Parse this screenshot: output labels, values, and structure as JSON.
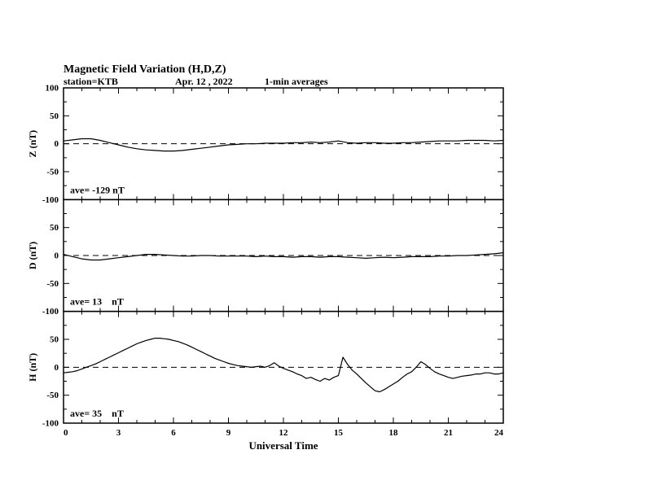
{
  "title": "Magnetic Field Variation (H,D,Z)",
  "subtitle": {
    "station": "station=KTB",
    "date": "Apr. 12 , 2022",
    "averages": "1-min averages"
  },
  "chart_data": {
    "type": "line",
    "title": "Magnetic Field Variation (H,D,Z)",
    "xlabel": "Universal Time",
    "xlim": [
      0,
      24
    ],
    "xticks": [
      0,
      3,
      6,
      9,
      12,
      15,
      18,
      21,
      24
    ],
    "x_minor_step": 1,
    "line_color": "#000000",
    "zero_line": {
      "value": 0,
      "style": "dashed"
    },
    "panels": [
      {
        "name": "Z",
        "ylabel": "Z (nT)",
        "ave_label": "ave= -129 nT",
        "ylim": [
          -100,
          100
        ],
        "yticks": [
          100,
          50,
          0,
          -50,
          -100
        ],
        "y_minor_step": 25,
        "x_start": 0,
        "x_step": 0.5,
        "values": [
          5,
          7,
          9,
          9,
          6,
          2,
          -2,
          -6,
          -9,
          -11,
          -12,
          -13,
          -13,
          -12,
          -10,
          -8,
          -6,
          -4,
          -2,
          -1,
          0,
          0,
          1,
          1,
          1,
          2,
          2,
          3,
          2,
          3,
          5,
          2,
          1,
          2,
          2,
          1,
          1,
          2,
          2,
          3,
          4,
          5,
          5,
          5,
          6,
          6,
          6,
          5,
          6
        ]
      },
      {
        "name": "D",
        "ylabel": "D (nT)",
        "ave_label": "ave= 13    nT",
        "ylim": [
          -100,
          100
        ],
        "yticks": [
          100,
          50,
          0,
          -50,
          -100
        ],
        "y_minor_step": 25,
        "x_start": 0,
        "x_step": 0.5,
        "values": [
          2,
          -2,
          -6,
          -8,
          -8,
          -6,
          -4,
          -2,
          0,
          2,
          2,
          1,
          0,
          -1,
          -1,
          0,
          0,
          -1,
          -1,
          -1,
          -1,
          -2,
          -1,
          -2,
          -2,
          -3,
          -2,
          -2,
          -3,
          -2,
          -2,
          -3,
          -4,
          -5,
          -4,
          -3,
          -4,
          -3,
          -2,
          -2,
          -2,
          -1,
          -1,
          0,
          0,
          1,
          2,
          3,
          5
        ]
      },
      {
        "name": "H",
        "ylabel": "H (nT)",
        "ave_label": "ave= 35    nT",
        "ylim": [
          -100,
          100
        ],
        "yticks": [
          100,
          50,
          0,
          -50,
          -100
        ],
        "y_minor_step": 25,
        "x_start": 0,
        "x_step": 0.25,
        "values": [
          -10,
          -9,
          -8,
          -6,
          -3,
          0,
          3,
          6,
          10,
          14,
          18,
          22,
          26,
          30,
          34,
          38,
          42,
          45,
          48,
          50,
          52,
          52,
          51,
          50,
          48,
          46,
          43,
          40,
          36,
          32,
          28,
          24,
          20,
          16,
          13,
          10,
          7,
          5,
          3,
          2,
          1,
          0,
          1,
          2,
          0,
          3,
          8,
          2,
          -2,
          -5,
          -8,
          -12,
          -15,
          -20,
          -18,
          -22,
          -25,
          -20,
          -23,
          -18,
          -15,
          18,
          5,
          -5,
          -12,
          -20,
          -28,
          -35,
          -42,
          -44,
          -40,
          -35,
          -30,
          -25,
          -18,
          -12,
          -8,
          0,
          10,
          5,
          -2,
          -8,
          -12,
          -15,
          -18,
          -20,
          -18,
          -16,
          -15,
          -14,
          -12,
          -12,
          -10,
          -10,
          -12,
          -12,
          -10
        ]
      }
    ]
  }
}
